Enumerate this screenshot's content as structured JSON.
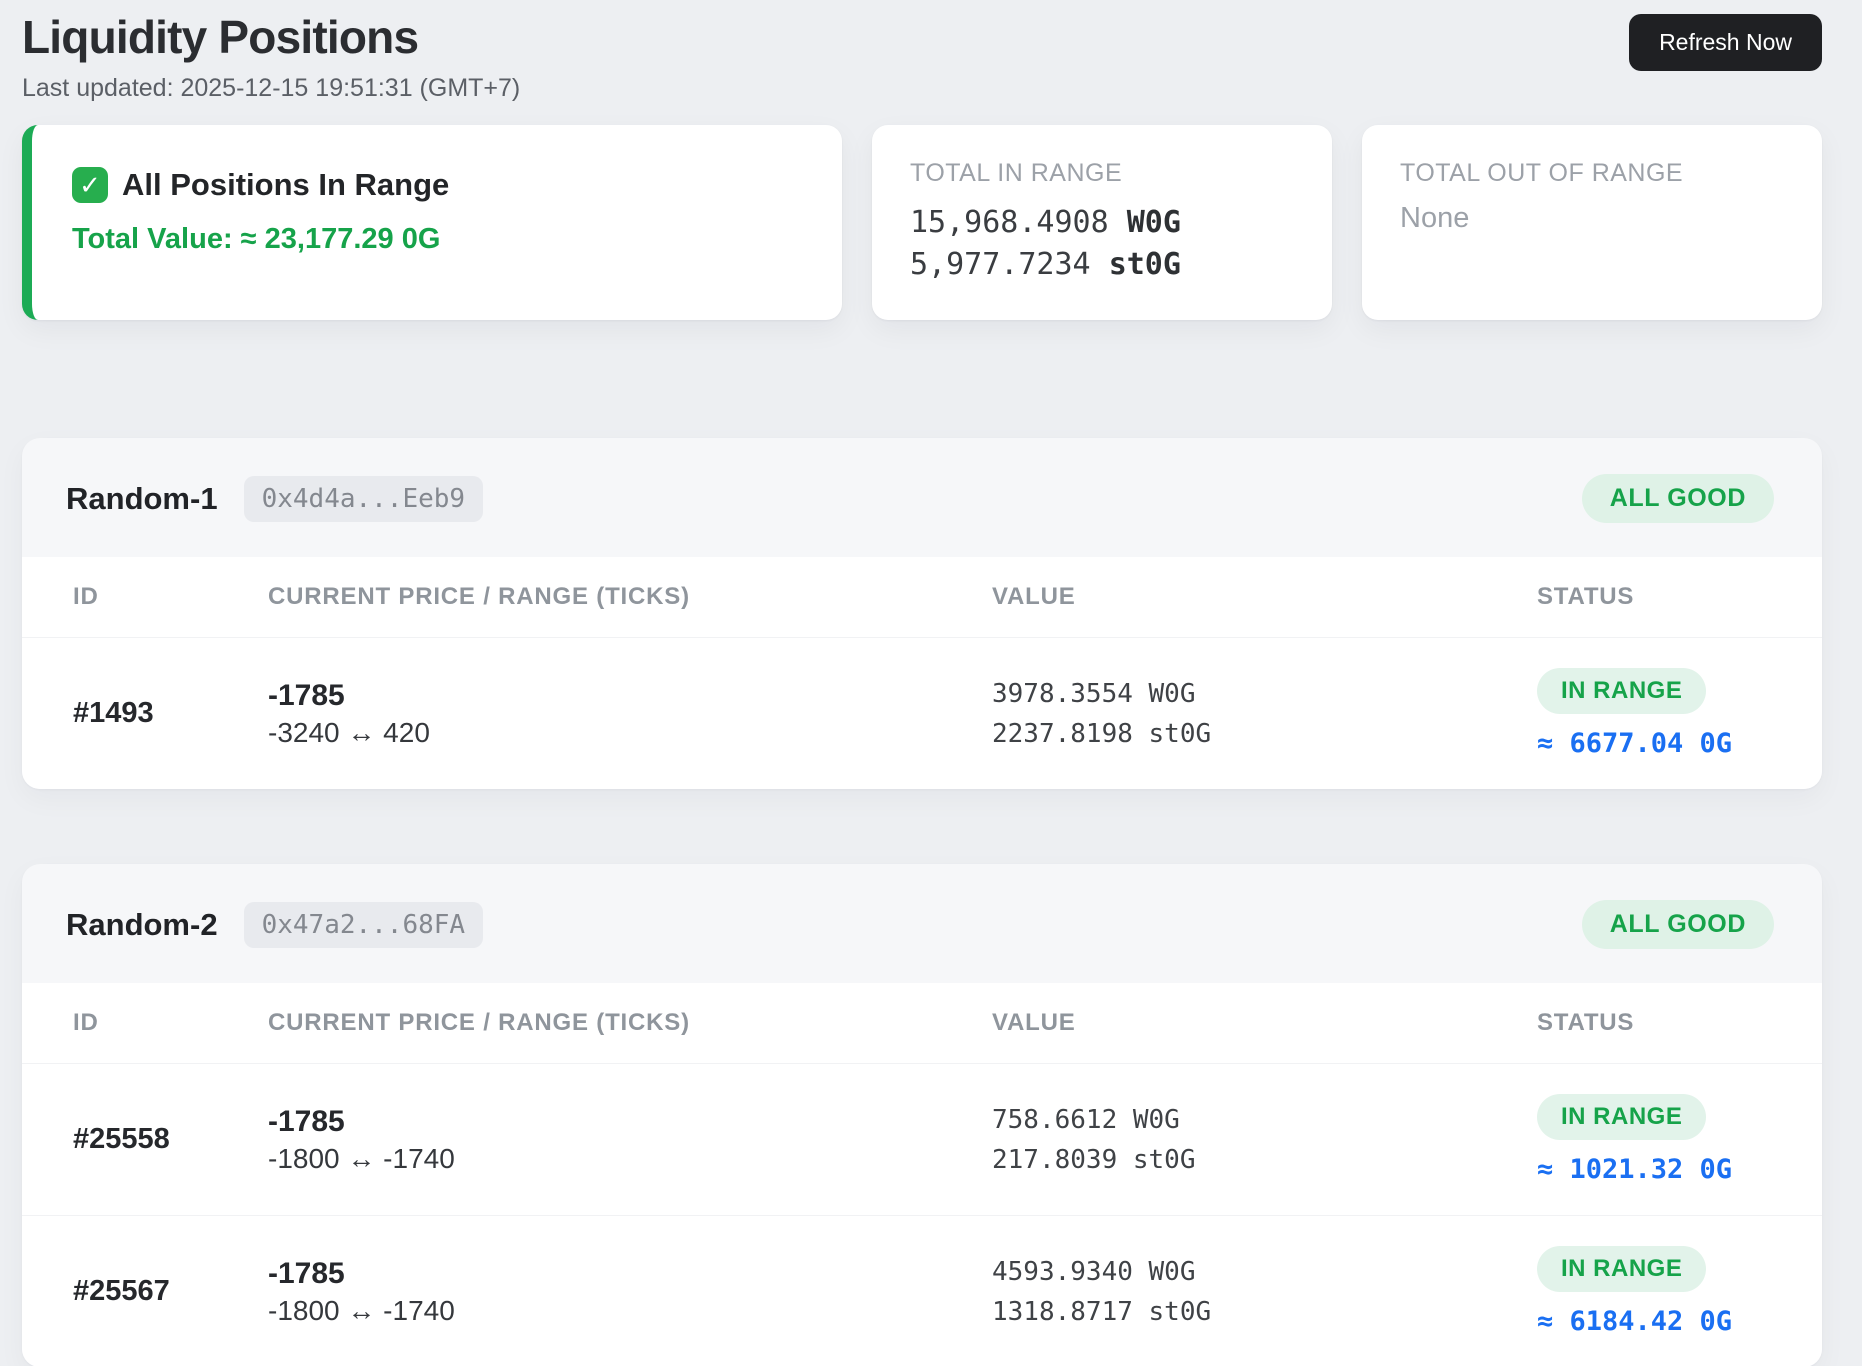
{
  "page": {
    "title": "Liquidity Positions",
    "last_updated": "Last updated: 2025-12-15 19:51:31 (GMT+7)",
    "refresh_label": "Refresh Now"
  },
  "summary": {
    "status_card": {
      "check_icon": "✓",
      "title": "All Positions In Range",
      "total_value": "Total Value: ≈ 23,177.29 0G"
    },
    "in_range_card": {
      "label": "TOTAL IN RANGE",
      "lines": [
        {
          "amount": "15,968.4908",
          "unit": "W0G"
        },
        {
          "amount": "5,977.7234",
          "unit": "st0G"
        }
      ]
    },
    "out_of_range_card": {
      "label": "TOTAL OUT OF RANGE",
      "value": "None"
    }
  },
  "table_headers": {
    "id": "ID",
    "price": "CURRENT PRICE / RANGE (TICKS)",
    "value": "VALUE",
    "status": "STATUS"
  },
  "pools": [
    {
      "name": "Random-1",
      "address": "0x4d4a...Eeb9",
      "badge": "ALL GOOD",
      "positions": [
        {
          "id": "#1493",
          "current_price": "-1785",
          "range": "-3240 ↔ 420",
          "value_line1": "3978.3554 W0G",
          "value_line2": "2237.8198 st0G",
          "status": "IN RANGE",
          "est_value": "≈ 6677.04 0G"
        }
      ]
    },
    {
      "name": "Random-2",
      "address": "0x47a2...68FA",
      "badge": "ALL GOOD",
      "positions": [
        {
          "id": "#25558",
          "current_price": "-1785",
          "range": "-1800 ↔ -1740",
          "value_line1": "758.6612 W0G",
          "value_line2": "217.8039 st0G",
          "status": "IN RANGE",
          "est_value": "≈ 1021.32 0G"
        },
        {
          "id": "#25567",
          "current_price": "-1785",
          "range": "-1800 ↔ -1740",
          "value_line1": "4593.9340 W0G",
          "value_line2": "1318.8717 st0G",
          "status": "IN RANGE",
          "est_value": "≈ 6184.42 0G"
        }
      ]
    }
  ],
  "colors": {
    "page_bg": "#edeff2",
    "accent_green": "#16a34a",
    "green_border": "#1cab55",
    "badge_green_bg": "#dff2e7",
    "pill_green_bg": "#e2f3ea",
    "accent_blue": "#1a6ff2",
    "button_bg": "#1f2023"
  }
}
